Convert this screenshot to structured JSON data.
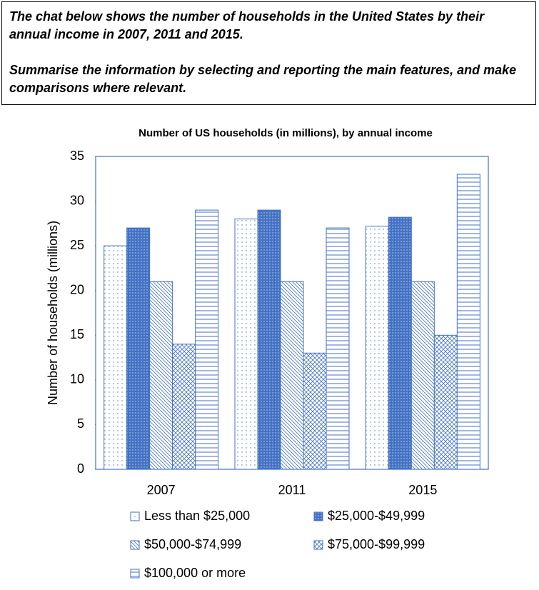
{
  "task": [
    "The chat below shows the number of households in the United States by their annual income in 2007, 2011 and 2015.",
    "Summarise the information by selecting and reporting the main features, and make comparisons where relevant."
  ],
  "chart_data": {
    "type": "bar",
    "title": "Number of US households (in millions), by annual income",
    "y_label": "Number of households (millions)",
    "categories": [
      "2007",
      "2011",
      "2015"
    ],
    "color": "#4472c4",
    "series": [
      {
        "name": "Less than $25,000",
        "pattern": "dots",
        "values": [
          25,
          28,
          27.2
        ]
      },
      {
        "name": "$25,000-$49,999",
        "pattern": "dark-dots",
        "values": [
          27,
          29,
          28.2
        ]
      },
      {
        "name": "$50,000-$74,999",
        "pattern": "diagonal",
        "values": [
          21,
          21,
          21
        ]
      },
      {
        "name": "$75,000-$99,999",
        "pattern": "crosshatch",
        "values": [
          14,
          13,
          15
        ]
      },
      {
        "name": "$100,000 or more",
        "pattern": "horizontal",
        "values": [
          29,
          27,
          33
        ]
      }
    ],
    "ylim": [
      0,
      35
    ],
    "yticks": [
      0,
      5,
      10,
      15,
      20,
      25,
      30,
      35
    ]
  }
}
